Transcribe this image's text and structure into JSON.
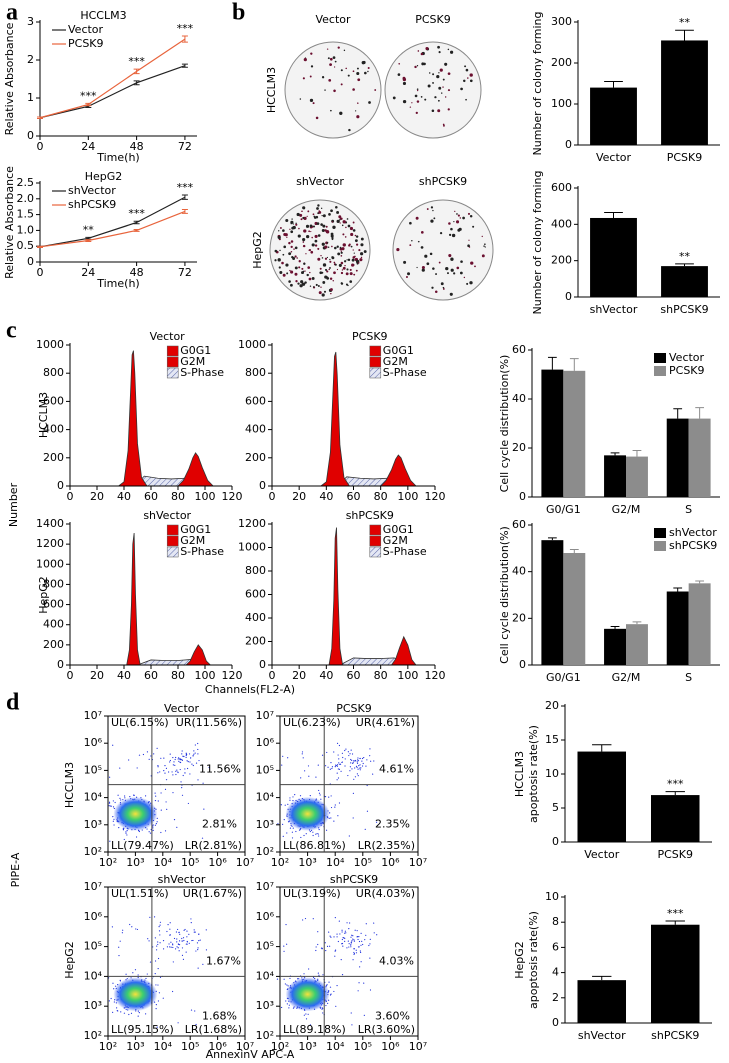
{
  "panel_labels": [
    "a",
    "b",
    "c",
    "d"
  ],
  "colony_plates": {
    "row_labels": [
      "HCCLM3",
      "HepG2"
    ],
    "column_labels": [
      [
        "Vector",
        "PCSK9"
      ],
      [
        "shVector",
        "shPCSK9"
      ]
    ]
  },
  "shared_labels": {
    "c_ylabel": "Number",
    "c_xlabel": "Channels(FL2-A)",
    "c_rows": [
      "HCCLM3",
      "HepG2"
    ],
    "d_ylabel": "PIPE-A",
    "d_xlabel": "AnnexinV APC-A",
    "d_rows": [
      "HCCLM3",
      "HepG2"
    ]
  },
  "chart_data": [
    {
      "type": "line",
      "title": "HCCLM3",
      "x": [
        0,
        24,
        48,
        72
      ],
      "series": [
        {
          "name": "Vector",
          "color": "#222222",
          "values": [
            0.48,
            0.78,
            1.4,
            1.85
          ],
          "errors": [
            0.02,
            0.03,
            0.05,
            0.04
          ]
        },
        {
          "name": "PCSK9",
          "color": "#e8643c",
          "values": [
            0.48,
            0.83,
            1.7,
            2.55
          ],
          "errors": [
            0.02,
            0.03,
            0.06,
            0.08
          ]
        }
      ],
      "annotations": [
        "***",
        "***",
        "***"
      ],
      "annotation_x": [
        24,
        48,
        72
      ],
      "xlabel": "Time(h)",
      "ylabel": "Relative Absorbance",
      "xlim": [
        0,
        78
      ],
      "xticks": [
        0,
        24,
        48,
        72
      ],
      "ylim": [
        0,
        3
      ],
      "yticks": [
        0,
        1,
        2,
        3
      ],
      "legend": "upper left"
    },
    {
      "type": "line",
      "title": "HepG2",
      "x": [
        0,
        24,
        48,
        72
      ],
      "series": [
        {
          "name": "shVector",
          "color": "#222222",
          "values": [
            0.48,
            0.75,
            1.25,
            2.05
          ],
          "errors": [
            0.02,
            0.03,
            0.04,
            0.07
          ]
        },
        {
          "name": "shPCSK9",
          "color": "#e8643c",
          "values": [
            0.48,
            0.68,
            1.0,
            1.6
          ],
          "errors": [
            0.02,
            0.03,
            0.03,
            0.06
          ]
        }
      ],
      "annotations": [
        "**",
        "***",
        "***"
      ],
      "annotation_x": [
        24,
        48,
        72
      ],
      "xlabel": "Time(h)",
      "ylabel": "Relative Absorbance",
      "xlim": [
        0,
        78
      ],
      "xticks": [
        0,
        24,
        48,
        72
      ],
      "ylim": [
        0,
        2.5
      ],
      "yticks": [
        0,
        0.5,
        {
          "value": 1,
          "label": "1.0"
        },
        1.5,
        {
          "value": 2,
          "label": "2.0"
        },
        2.5
      ],
      "legend": "upper left"
    },
    {
      "type": "bar",
      "categories": [
        "Vector",
        "PCSK9"
      ],
      "values": [
        140,
        255
      ],
      "errors": [
        15,
        25
      ],
      "color": "#000000",
      "annotations": [
        null,
        "**"
      ],
      "ylabel": "Number of colony forming",
      "ylim": [
        0,
        300
      ],
      "yticks": [
        0,
        100,
        200,
        300
      ]
    },
    {
      "type": "bar",
      "categories": [
        "shVector",
        "shPCSK9"
      ],
      "values": [
        435,
        170
      ],
      "errors": [
        30,
        12
      ],
      "color": "#000000",
      "annotations": [
        null,
        "**"
      ],
      "ylabel": "Number of colony forming",
      "ylim": [
        0,
        600
      ],
      "yticks": [
        0,
        200,
        400,
        600
      ]
    },
    {
      "type": "flow-histogram",
      "title": "Vector",
      "xlim": [
        0,
        120
      ],
      "xticks": [
        0,
        20,
        40,
        60,
        80,
        100,
        120
      ],
      "ylim": [
        0,
        1000
      ],
      "yticks": [
        0,
        200,
        400,
        600,
        800,
        1000
      ],
      "series": [
        {
          "name": "G0G1",
          "color": "#e00000",
          "x": [
            36,
            40,
            43,
            45,
            46,
            47,
            48,
            50,
            53,
            57
          ],
          "values": [
            0,
            30,
            250,
            700,
            930,
            960,
            800,
            300,
            60,
            0
          ]
        },
        {
          "name": "G2M",
          "color": "#e00000",
          "x": [
            80,
            84,
            88,
            91,
            93,
            95,
            98,
            102,
            106
          ],
          "values": [
            0,
            40,
            120,
            200,
            235,
            210,
            130,
            40,
            0
          ]
        },
        {
          "name": "S-Phase",
          "color": "#5966a8",
          "pattern": "hatch",
          "x": [
            48,
            55,
            65,
            75,
            85,
            95,
            104
          ],
          "values": [
            0,
            70,
            55,
            50,
            55,
            60,
            0
          ]
        }
      ]
    },
    {
      "type": "flow-histogram",
      "title": "PCSK9",
      "xlim": [
        0,
        120
      ],
      "xticks": [
        0,
        20,
        40,
        60,
        80,
        100,
        120
      ],
      "ylim": [
        0,
        1000
      ],
      "yticks": [
        0,
        200,
        400,
        600,
        800,
        1000
      ],
      "series": [
        {
          "name": "G0G1",
          "color": "#e00000",
          "x": [
            36,
            40,
            43,
            45,
            46,
            47,
            48,
            50,
            53,
            57
          ],
          "values": [
            0,
            30,
            240,
            690,
            920,
            950,
            790,
            290,
            60,
            0
          ]
        },
        {
          "name": "G2M",
          "color": "#e00000",
          "x": [
            80,
            84,
            88,
            91,
            93,
            95,
            98,
            102,
            106
          ],
          "values": [
            0,
            40,
            115,
            190,
            220,
            200,
            125,
            40,
            0
          ]
        },
        {
          "name": "S-Phase",
          "color": "#5966a8",
          "pattern": "hatch",
          "x": [
            48,
            55,
            65,
            75,
            85,
            95,
            104
          ],
          "values": [
            0,
            65,
            55,
            50,
            55,
            55,
            0
          ]
        }
      ]
    },
    {
      "type": "flow-histogram",
      "title": "shVector",
      "xlim": [
        0,
        120
      ],
      "xticks": [
        0,
        20,
        40,
        60,
        80,
        100,
        120
      ],
      "ylim": [
        0,
        1400
      ],
      "yticks": [
        0,
        200,
        400,
        600,
        800,
        1000,
        1200,
        1400
      ],
      "series": [
        {
          "name": "G0G1",
          "color": "#e00000",
          "x": [
            42,
            44,
            45.5,
            46.5,
            47.5,
            48.5,
            50,
            52
          ],
          "values": [
            0,
            150,
            600,
            1200,
            1310,
            700,
            150,
            0
          ]
        },
        {
          "name": "G2M",
          "color": "#e00000",
          "x": [
            86,
            89,
            92,
            95,
            98,
            101,
            104
          ],
          "values": [
            0,
            40,
            130,
            200,
            150,
            40,
            0
          ]
        },
        {
          "name": "S-Phase",
          "color": "#5966a8",
          "pattern": "hatch",
          "x": [
            50,
            60,
            70,
            80,
            90,
            100
          ],
          "values": [
            0,
            50,
            45,
            45,
            55,
            0
          ]
        }
      ]
    },
    {
      "type": "flow-histogram",
      "title": "shPCSK9",
      "xlim": [
        0,
        120
      ],
      "xticks": [
        0,
        20,
        40,
        60,
        80,
        100,
        120
      ],
      "ylim": [
        0,
        1200
      ],
      "yticks": [
        0,
        200,
        400,
        600,
        800,
        1000,
        1200
      ],
      "series": [
        {
          "name": "G0G1",
          "color": "#e00000",
          "x": [
            42,
            44,
            45.5,
            46.5,
            47.5,
            48.5,
            50,
            52
          ],
          "values": [
            0,
            140,
            550,
            1080,
            1170,
            640,
            140,
            0
          ]
        },
        {
          "name": "G2M",
          "color": "#e00000",
          "x": [
            88,
            91,
            94,
            97,
            100,
            103,
            106
          ],
          "values": [
            0,
            50,
            150,
            240,
            170,
            45,
            0
          ]
        },
        {
          "name": "S-Phase",
          "color": "#5966a8",
          "pattern": "hatch",
          "x": [
            50,
            60,
            70,
            80,
            90,
            100
          ],
          "values": [
            0,
            60,
            55,
            55,
            60,
            0
          ]
        }
      ]
    },
    {
      "type": "bar",
      "categories": [
        "G0/G1",
        "G2/M",
        "S"
      ],
      "ylabel": "Cell cycle distribution(%)",
      "ylim": [
        0,
        60
      ],
      "yticks": [
        0,
        20,
        40,
        60
      ],
      "legend": "upper right",
      "series": [
        {
          "name": "Vector",
          "color": "#000000",
          "values": [
            52,
            17,
            32
          ],
          "errors": [
            5,
            1,
            4
          ]
        },
        {
          "name": "PCSK9",
          "color": "#8c8c8c",
          "values": [
            51.5,
            16.5,
            32
          ],
          "errors": [
            5,
            2.5,
            4.5
          ]
        }
      ]
    },
    {
      "type": "bar",
      "categories": [
        "G0/G1",
        "G2/M",
        "S"
      ],
      "ylabel": "Cell cycle distribution(%)",
      "ylim": [
        0,
        60
      ],
      "yticks": [
        0,
        20,
        40,
        60
      ],
      "legend": "upper right",
      "series": [
        {
          "name": "shVector",
          "color": "#000000",
          "values": [
            53.5,
            15.5,
            31.5
          ],
          "errors": [
            1,
            1,
            1.5
          ]
        },
        {
          "name": "shPCSK9",
          "color": "#8c8c8c",
          "values": [
            48,
            17.5,
            35
          ],
          "errors": [
            1.5,
            1,
            1
          ]
        }
      ]
    },
    {
      "type": "flow-scatter",
      "title": "Vector",
      "log_scale": true,
      "xlim": [
        100,
        10000000
      ],
      "ylim": [
        100,
        10000000
      ],
      "xticks": [
        {
          "value": 100,
          "label": "10²"
        },
        {
          "value": 1000,
          "label": "10³"
        },
        {
          "value": 10000,
          "label": "10⁴"
        },
        {
          "value": 100000,
          "label": "10⁵"
        },
        {
          "value": 1000000,
          "label": "10⁶"
        },
        {
          "value": 10000000,
          "label": "10⁷"
        }
      ],
      "yticks": [
        {
          "value": 100,
          "label": "10²"
        },
        {
          "value": 1000,
          "label": "10³"
        },
        {
          "value": 10000,
          "label": "10⁴"
        },
        {
          "value": 100000,
          "label": "10⁵"
        },
        {
          "value": 1000000,
          "label": "10⁶"
        },
        {
          "value": 10000000,
          "label": "10⁷"
        }
      ],
      "gate": [
        4000,
        30000
      ],
      "quadrants": {
        "UL": "UL(6.15%)",
        "UR": "UR(11.56%)",
        "LL": "LL(79.47%)",
        "LR": "LR(2.81%)"
      },
      "big_labels": [
        "11.56%",
        "2.81%"
      ]
    },
    {
      "type": "flow-scatter",
      "title": "PCSK9",
      "log_scale": true,
      "xlim": [
        100,
        10000000
      ],
      "ylim": [
        100,
        10000000
      ],
      "xticks": [
        {
          "value": 100,
          "label": "10²"
        },
        {
          "value": 1000,
          "label": "10³"
        },
        {
          "value": 10000,
          "label": "10⁴"
        },
        {
          "value": 100000,
          "label": "10⁵"
        },
        {
          "value": 1000000,
          "label": "10⁶"
        },
        {
          "value": 10000000,
          "label": "10⁷"
        }
      ],
      "yticks": [
        {
          "value": 100,
          "label": "10²"
        },
        {
          "value": 1000,
          "label": "10³"
        },
        {
          "value": 10000,
          "label": "10⁴"
        },
        {
          "value": 100000,
          "label": "10⁵"
        },
        {
          "value": 1000000,
          "label": "10⁶"
        },
        {
          "value": 10000000,
          "label": "10⁷"
        }
      ],
      "gate": [
        4000,
        30000
      ],
      "quadrants": {
        "UL": "UL(6.23%)",
        "UR": "UR(4.61%)",
        "LL": "LL(86.81%)",
        "LR": "LR(2.35%)"
      },
      "big_labels": [
        "4.61%",
        "2.35%"
      ]
    },
    {
      "type": "flow-scatter",
      "title": "shVector",
      "log_scale": true,
      "xlim": [
        100,
        10000000
      ],
      "ylim": [
        100,
        10000000
      ],
      "xticks": [
        {
          "value": 100,
          "label": "10²"
        },
        {
          "value": 1000,
          "label": "10³"
        },
        {
          "value": 10000,
          "label": "10⁴"
        },
        {
          "value": 100000,
          "label": "10⁵"
        },
        {
          "value": 1000000,
          "label": "10⁶"
        },
        {
          "value": 10000000,
          "label": "10⁷"
        }
      ],
      "yticks": [
        {
          "value": 100,
          "label": "10²"
        },
        {
          "value": 1000,
          "label": "10³"
        },
        {
          "value": 10000,
          "label": "10⁴"
        },
        {
          "value": 100000,
          "label": "10⁵"
        },
        {
          "value": 1000000,
          "label": "10⁶"
        },
        {
          "value": 10000000,
          "label": "10⁷"
        }
      ],
      "gate": [
        4000,
        10000
      ],
      "quadrants": {
        "UL": "UL(1.51%)",
        "UR": "UR(1.67%)",
        "LL": "LL(95.15%)",
        "LR": "LR(1.68%)"
      },
      "big_labels": [
        "1.67%",
        "1.68%"
      ]
    },
    {
      "type": "flow-scatter",
      "title": "shPCSK9",
      "log_scale": true,
      "xlim": [
        100,
        10000000
      ],
      "ylim": [
        100,
        10000000
      ],
      "xticks": [
        {
          "value": 100,
          "label": "10²"
        },
        {
          "value": 1000,
          "label": "10³"
        },
        {
          "value": 10000,
          "label": "10⁴"
        },
        {
          "value": 100000,
          "label": "10⁵"
        },
        {
          "value": 1000000,
          "label": "10⁶"
        },
        {
          "value": 10000000,
          "label": "10⁷"
        }
      ],
      "yticks": [
        {
          "value": 100,
          "label": "10²"
        },
        {
          "value": 1000,
          "label": "10³"
        },
        {
          "value": 10000,
          "label": "10⁴"
        },
        {
          "value": 100000,
          "label": "10⁵"
        },
        {
          "value": 1000000,
          "label": "10⁶"
        },
        {
          "value": 10000000,
          "label": "10⁷"
        }
      ],
      "gate": [
        4000,
        10000
      ],
      "quadrants": {
        "UL": "UL(3.19%)",
        "UR": "UR(4.03%)",
        "LL": "LL(89.18%)",
        "LR": "LR(3.60%)"
      },
      "big_labels": [
        "4.03%",
        "3.60%"
      ]
    },
    {
      "type": "bar",
      "categories": [
        "Vector",
        "PCSK9"
      ],
      "values": [
        13.3,
        6.9
      ],
      "errors": [
        1,
        0.5
      ],
      "color": "#000000",
      "annotations": [
        null,
        "***"
      ],
      "ylabel": [
        "HCCLM3",
        "apoptosis rate(%)"
      ],
      "ylim": [
        0,
        20
      ],
      "yticks": [
        0,
        5,
        10,
        15,
        20
      ]
    },
    {
      "type": "bar",
      "categories": [
        "shVector",
        "shPCSK9"
      ],
      "values": [
        3.4,
        7.8
      ],
      "errors": [
        0.3,
        0.3
      ],
      "color": "#000000",
      "annotations": [
        null,
        "***"
      ],
      "ylabel": [
        "HepG2",
        "apoptosis rate(%)"
      ],
      "ylim": [
        0,
        10
      ],
      "yticks": [
        0,
        2,
        4,
        6,
        8,
        10
      ]
    }
  ]
}
